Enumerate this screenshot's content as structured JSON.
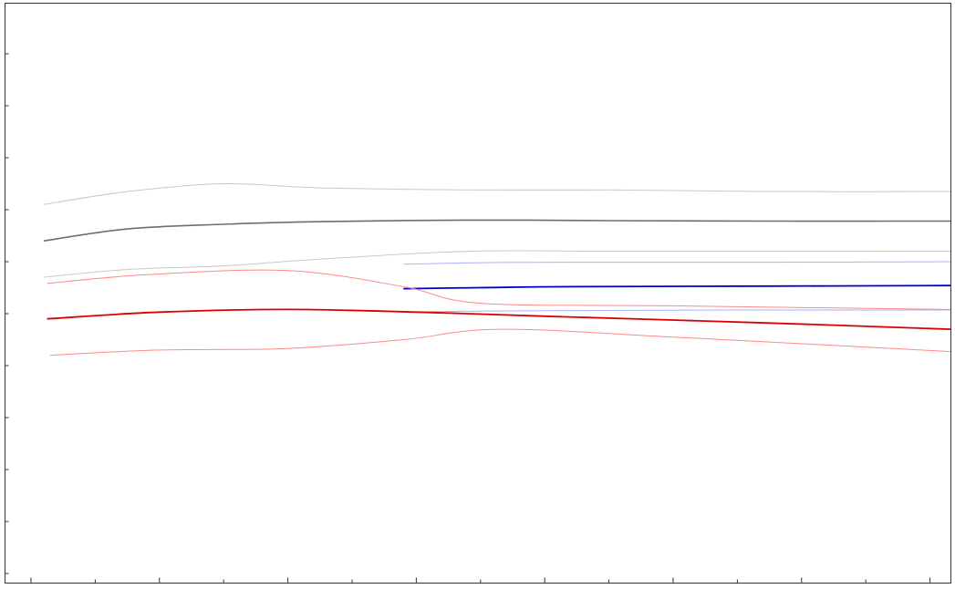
{
  "chart_data": {
    "type": "line",
    "title": "",
    "xlabel": "",
    "ylabel": "",
    "xlim": [
      0,
      14.5
    ],
    "ylim": [
      0,
      11
    ],
    "x_ticks": [
      0,
      1,
      2,
      3,
      4,
      5,
      6,
      7,
      8,
      9,
      10,
      11,
      12,
      13,
      14
    ],
    "y_ticks": [
      0,
      1,
      2,
      3,
      4,
      5,
      6,
      7,
      8,
      9,
      10
    ],
    "grid": false,
    "legend": "none",
    "series": [
      {
        "role": "upper-band",
        "color": "#c8c8c8",
        "width": 1,
        "points": [
          [
            0.2,
            7.1
          ],
          [
            1.5,
            7.35
          ],
          [
            3.0,
            7.5
          ],
          [
            4.5,
            7.42
          ],
          [
            6.8,
            7.38
          ],
          [
            9.0,
            7.38
          ],
          [
            11.5,
            7.35
          ],
          [
            14.5,
            7.35
          ]
        ]
      },
      {
        "role": "center",
        "color": "#6e6e6e",
        "width": 1.6,
        "points": [
          [
            0.2,
            6.4
          ],
          [
            1.5,
            6.63
          ],
          [
            3.0,
            6.72
          ],
          [
            4.5,
            6.77
          ],
          [
            6.8,
            6.8
          ],
          [
            9.0,
            6.79
          ],
          [
            11.5,
            6.78
          ],
          [
            14.5,
            6.78
          ]
        ]
      },
      {
        "role": "lower-band",
        "color": "#c8c8c8",
        "width": 1,
        "points": [
          [
            0.2,
            5.7
          ],
          [
            1.5,
            5.85
          ],
          [
            3.0,
            5.92
          ],
          [
            4.5,
            6.05
          ],
          [
            6.8,
            6.2
          ],
          [
            9.0,
            6.2
          ],
          [
            11.5,
            6.2
          ],
          [
            14.5,
            6.2
          ]
        ]
      },
      {
        "role": "upper-band",
        "color": "#aab0ff",
        "width": 1,
        "points": [
          [
            5.8,
            5.95
          ],
          [
            7.0,
            5.98
          ],
          [
            8.5,
            5.99
          ],
          [
            11.5,
            5.99
          ],
          [
            14.5,
            6.0
          ]
        ]
      },
      {
        "role": "center",
        "color": "#0000cc",
        "width": 1.8,
        "points": [
          [
            5.8,
            5.48
          ],
          [
            7.0,
            5.5
          ],
          [
            8.5,
            5.52
          ],
          [
            11.5,
            5.53
          ],
          [
            14.5,
            5.54
          ]
        ]
      },
      {
        "role": "lower-band",
        "color": "#aab0ff",
        "width": 1,
        "points": [
          [
            5.8,
            5.03
          ],
          [
            7.0,
            5.05
          ],
          [
            8.5,
            5.06
          ],
          [
            11.5,
            5.07
          ],
          [
            14.5,
            5.07
          ]
        ]
      },
      {
        "role": "upper-band",
        "color": "#ff8a8a",
        "width": 1,
        "points": [
          [
            0.25,
            5.58
          ],
          [
            1.8,
            5.75
          ],
          [
            4.0,
            5.83
          ],
          [
            5.8,
            5.52
          ],
          [
            7.0,
            5.2
          ],
          [
            10.0,
            5.15
          ],
          [
            14.5,
            5.08
          ]
        ]
      },
      {
        "role": "center",
        "color": "#dd0000",
        "width": 1.8,
        "points": [
          [
            0.25,
            4.9
          ],
          [
            2.0,
            5.03
          ],
          [
            4.0,
            5.08
          ],
          [
            6.0,
            5.03
          ],
          [
            8.0,
            4.95
          ],
          [
            11.5,
            4.82
          ],
          [
            14.5,
            4.7
          ]
        ]
      },
      {
        "role": "lower-band",
        "color": "#ff8a8a",
        "width": 1,
        "points": [
          [
            0.3,
            4.2
          ],
          [
            2.0,
            4.3
          ],
          [
            4.0,
            4.33
          ],
          [
            5.8,
            4.5
          ],
          [
            7.3,
            4.7
          ],
          [
            10.0,
            4.55
          ],
          [
            14.5,
            4.27
          ]
        ]
      }
    ]
  }
}
